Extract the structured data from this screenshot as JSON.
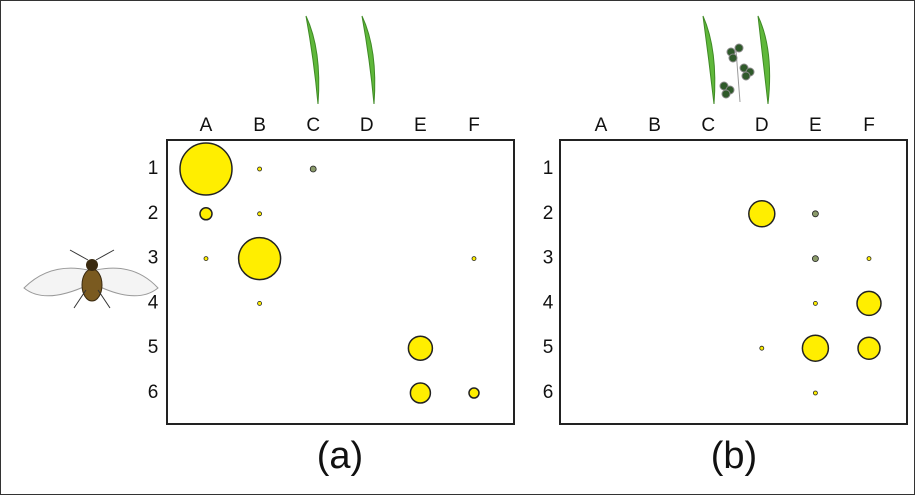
{
  "chart_data": [
    {
      "type": "bubble",
      "caption": "(a)",
      "columns": [
        "A",
        "B",
        "C",
        "D",
        "E",
        "F"
      ],
      "rows": [
        "1",
        "2",
        "3",
        "4",
        "5",
        "6"
      ],
      "color": "#ffee00",
      "points": [
        {
          "row": "1",
          "col": "A",
          "size": 26,
          "color": "#ffee00"
        },
        {
          "row": "1",
          "col": "B",
          "size": 2,
          "color": "#ffee00"
        },
        {
          "row": "1",
          "col": "C",
          "size": 3,
          "color": "#8a9a6a"
        },
        {
          "row": "2",
          "col": "A",
          "size": 6,
          "color": "#ffee00"
        },
        {
          "row": "2",
          "col": "B",
          "size": 2,
          "color": "#ffee00"
        },
        {
          "row": "3",
          "col": "A",
          "size": 2,
          "color": "#ffee00"
        },
        {
          "row": "3",
          "col": "B",
          "size": 21,
          "color": "#ffee00"
        },
        {
          "row": "3",
          "col": "F",
          "size": 2,
          "color": "#ffee00"
        },
        {
          "row": "4",
          "col": "B",
          "size": 2,
          "color": "#ffee00"
        },
        {
          "row": "5",
          "col": "E",
          "size": 12,
          "color": "#ffee00"
        },
        {
          "row": "6",
          "col": "E",
          "size": 10,
          "color": "#ffee00"
        },
        {
          "row": "6",
          "col": "F",
          "size": 5,
          "color": "#ffee00"
        }
      ]
    },
    {
      "type": "bubble",
      "caption": "(b)",
      "columns": [
        "A",
        "B",
        "C",
        "D",
        "E",
        "F"
      ],
      "rows": [
        "1",
        "2",
        "3",
        "4",
        "5",
        "6"
      ],
      "color": "#ffee00",
      "points": [
        {
          "row": "2",
          "col": "D",
          "size": 13,
          "color": "#ffee00"
        },
        {
          "row": "2",
          "col": "E",
          "size": 3,
          "color": "#8a9a6a"
        },
        {
          "row": "3",
          "col": "E",
          "size": 3,
          "color": "#8a9a6a"
        },
        {
          "row": "3",
          "col": "F",
          "size": 2,
          "color": "#ffee00"
        },
        {
          "row": "4",
          "col": "E",
          "size": 2,
          "color": "#ffee00"
        },
        {
          "row": "4",
          "col": "F",
          "size": 12,
          "color": "#ffee00"
        },
        {
          "row": "5",
          "col": "D",
          "size": 2,
          "color": "#ffee00"
        },
        {
          "row": "5",
          "col": "E",
          "size": 13,
          "color": "#ffee00"
        },
        {
          "row": "5",
          "col": "F",
          "size": 11,
          "color": "#ffee00"
        },
        {
          "row": "6",
          "col": "E",
          "size": 2,
          "color": "#ffee00"
        }
      ]
    }
  ]
}
